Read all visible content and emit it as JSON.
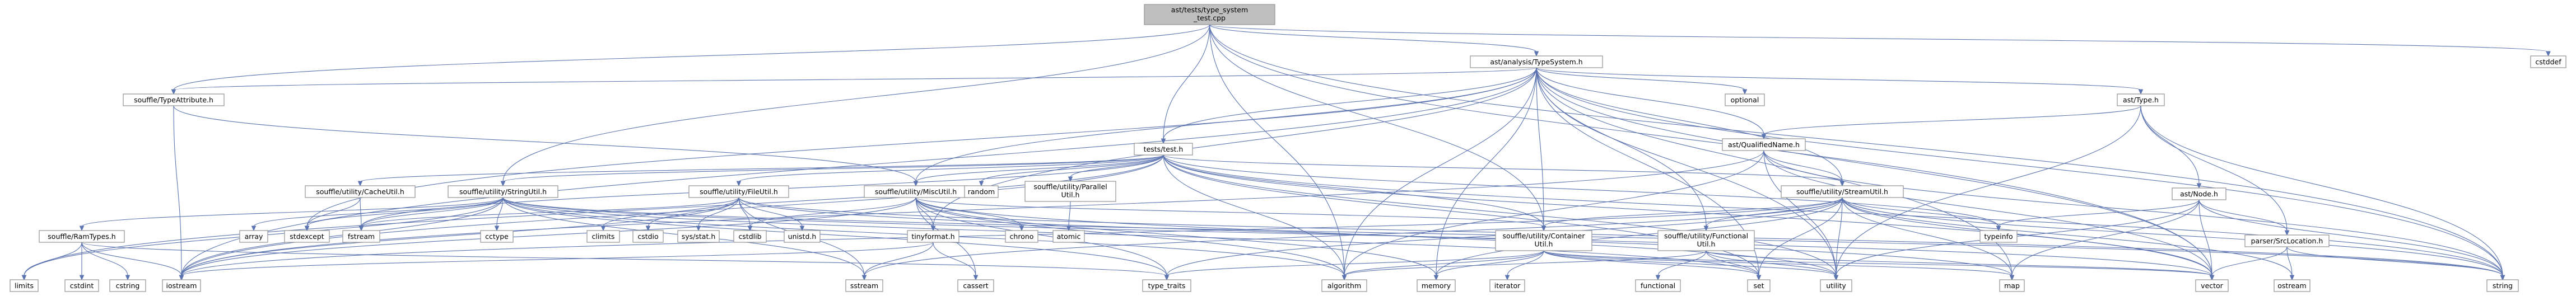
{
  "colors": {
    "node_fill": "#ffffff",
    "node_border": "#999999",
    "root_fill": "#bfbfbf",
    "root_border": "#666666",
    "red_border": "#ff0000",
    "edge": "#5c74b0"
  },
  "nodes": [
    {
      "id": "root",
      "lines": [
        "ast/tests/type_system",
        "_test.cpp"
      ],
      "style": "root"
    },
    {
      "id": "typesystem",
      "lines": [
        "ast/analysis/TypeSystem.h"
      ]
    },
    {
      "id": "cstddef",
      "lines": [
        "cstddef"
      ]
    },
    {
      "id": "typeattr",
      "lines": [
        "souffle/TypeAttribute.h"
      ]
    },
    {
      "id": "tests",
      "lines": [
        "tests/test.h"
      ]
    },
    {
      "id": "optional",
      "lines": [
        "optional"
      ]
    },
    {
      "id": "asttype",
      "lines": [
        "ast/Type.h"
      ]
    },
    {
      "id": "qualname",
      "lines": [
        "ast/QualifiedName.h"
      ]
    },
    {
      "id": "astnode",
      "lines": [
        "ast/Node.h"
      ],
      "style": "red"
    },
    {
      "id": "srcloc",
      "lines": [
        "parser/SrcLocation.h"
      ]
    },
    {
      "id": "cacheutil",
      "lines": [
        "souffle/utility/CacheUtil.h"
      ]
    },
    {
      "id": "stringutil",
      "lines": [
        "souffle/utility/StringUtil.h"
      ]
    },
    {
      "id": "fileutil",
      "lines": [
        "souffle/utility/FileUtil.h"
      ]
    },
    {
      "id": "miscutil",
      "lines": [
        "souffle/utility/MiscUtil.h"
      ]
    },
    {
      "id": "parallelutil",
      "lines": [
        "souffle/utility/Parallel",
        "Util.h"
      ]
    },
    {
      "id": "random",
      "lines": [
        "random"
      ]
    },
    {
      "id": "streamutil",
      "lines": [
        "souffle/utility/StreamUtil.h"
      ]
    },
    {
      "id": "ramtypes",
      "lines": [
        "souffle/RamTypes.h"
      ]
    },
    {
      "id": "array",
      "lines": [
        "array"
      ]
    },
    {
      "id": "stdexcept",
      "lines": [
        "stdexcept"
      ]
    },
    {
      "id": "fstream",
      "lines": [
        "fstream"
      ]
    },
    {
      "id": "cctype",
      "lines": [
        "cctype"
      ]
    },
    {
      "id": "climits",
      "lines": [
        "climits"
      ]
    },
    {
      "id": "cstdio",
      "lines": [
        "cstdio"
      ]
    },
    {
      "id": "sysstat",
      "lines": [
        "sys/stat.h"
      ]
    },
    {
      "id": "cstdlib",
      "lines": [
        "cstdlib"
      ]
    },
    {
      "id": "unistd",
      "lines": [
        "unistd.h"
      ]
    },
    {
      "id": "tinyformat",
      "lines": [
        "tinyformat.h"
      ]
    },
    {
      "id": "chrono",
      "lines": [
        "chrono"
      ]
    },
    {
      "id": "atomic",
      "lines": [
        "atomic"
      ]
    },
    {
      "id": "containerutil",
      "lines": [
        "souffle/utility/Container",
        "Util.h"
      ]
    },
    {
      "id": "functionalutil",
      "lines": [
        "souffle/utility/Functional",
        "Util.h"
      ]
    },
    {
      "id": "typeinfo",
      "lines": [
        "typeinfo"
      ]
    },
    {
      "id": "limits",
      "lines": [
        "limits"
      ]
    },
    {
      "id": "cstdint",
      "lines": [
        "cstdint"
      ]
    },
    {
      "id": "cstring",
      "lines": [
        "cstring"
      ]
    },
    {
      "id": "iostream",
      "lines": [
        "iostream"
      ]
    },
    {
      "id": "sstream",
      "lines": [
        "sstream"
      ]
    },
    {
      "id": "cassert",
      "lines": [
        "cassert"
      ]
    },
    {
      "id": "type_traits",
      "lines": [
        "type_traits"
      ]
    },
    {
      "id": "algorithm",
      "lines": [
        "algorithm"
      ]
    },
    {
      "id": "memory",
      "lines": [
        "memory"
      ]
    },
    {
      "id": "iterator",
      "lines": [
        "iterator"
      ]
    },
    {
      "id": "functional",
      "lines": [
        "functional"
      ]
    },
    {
      "id": "set",
      "lines": [
        "set"
      ]
    },
    {
      "id": "utility",
      "lines": [
        "utility"
      ]
    },
    {
      "id": "map",
      "lines": [
        "map"
      ]
    },
    {
      "id": "vector",
      "lines": [
        "vector"
      ]
    },
    {
      "id": "ostream",
      "lines": [
        "ostream"
      ]
    },
    {
      "id": "string",
      "lines": [
        "string"
      ]
    }
  ],
  "edges": [
    [
      "root",
      "typesystem"
    ],
    [
      "root",
      "cstddef"
    ],
    [
      "root",
      "typeattr"
    ],
    [
      "root",
      "tests"
    ],
    [
      "root",
      "stringutil"
    ],
    [
      "root",
      "containerutil"
    ],
    [
      "root",
      "algorithm"
    ],
    [
      "root",
      "string"
    ],
    [
      "root",
      "vector"
    ],
    [
      "typesystem",
      "typeattr"
    ],
    [
      "typesystem",
      "tests"
    ],
    [
      "typesystem",
      "optional"
    ],
    [
      "typesystem",
      "asttype"
    ],
    [
      "typesystem",
      "qualname"
    ],
    [
      "typesystem",
      "miscutil"
    ],
    [
      "typesystem",
      "streamutil"
    ],
    [
      "typesystem",
      "containerutil"
    ],
    [
      "typesystem",
      "functionalutil"
    ],
    [
      "typesystem",
      "stdexcept"
    ],
    [
      "typesystem",
      "iostream"
    ],
    [
      "typesystem",
      "algorithm"
    ],
    [
      "typesystem",
      "memory"
    ],
    [
      "typesystem",
      "set"
    ],
    [
      "typesystem",
      "utility"
    ],
    [
      "typesystem",
      "map"
    ],
    [
      "typesystem",
      "vector"
    ],
    [
      "typesystem",
      "string"
    ],
    [
      "typesystem",
      "tinyformat"
    ],
    [
      "typeattr",
      "miscutil"
    ],
    [
      "typeattr",
      "iostream"
    ],
    [
      "tests",
      "cacheutil"
    ],
    [
      "tests",
      "stringutil"
    ],
    [
      "tests",
      "fileutil"
    ],
    [
      "tests",
      "miscutil"
    ],
    [
      "tests",
      "parallelutil"
    ],
    [
      "tests",
      "random"
    ],
    [
      "tests",
      "streamutil"
    ],
    [
      "tests",
      "containerutil"
    ],
    [
      "tests",
      "fstream"
    ],
    [
      "tests",
      "iostream"
    ],
    [
      "tests",
      "limits"
    ],
    [
      "tests",
      "string"
    ],
    [
      "tests",
      "vector"
    ],
    [
      "tests",
      "set"
    ],
    [
      "tests",
      "algorithm"
    ],
    [
      "tests",
      "utility"
    ],
    [
      "tests",
      "typeinfo"
    ],
    [
      "asttype",
      "qualname"
    ],
    [
      "asttype",
      "astnode"
    ],
    [
      "asttype",
      "srcloc"
    ],
    [
      "asttype",
      "string"
    ],
    [
      "asttype",
      "utility"
    ],
    [
      "qualname",
      "streamutil"
    ],
    [
      "qualname",
      "algorithm"
    ],
    [
      "qualname",
      "string"
    ],
    [
      "qualname",
      "utility"
    ],
    [
      "qualname",
      "vector"
    ],
    [
      "qualname",
      "iostream"
    ],
    [
      "astnode",
      "srcloc"
    ],
    [
      "astnode",
      "typeinfo"
    ],
    [
      "astnode",
      "map"
    ],
    [
      "astnode",
      "utility"
    ],
    [
      "astnode",
      "vector"
    ],
    [
      "astnode",
      "string"
    ],
    [
      "srcloc",
      "string"
    ],
    [
      "srcloc",
      "ostream"
    ],
    [
      "srcloc",
      "vector"
    ],
    [
      "cacheutil",
      "fstream"
    ],
    [
      "cacheutil",
      "stdexcept"
    ],
    [
      "stringutil",
      "ramtypes"
    ],
    [
      "stringutil",
      "array"
    ],
    [
      "stringutil",
      "stdexcept"
    ],
    [
      "stringutil",
      "fstream"
    ],
    [
      "stringutil",
      "cctype"
    ],
    [
      "stringutil",
      "limits"
    ],
    [
      "stringutil",
      "sstream"
    ],
    [
      "stringutil",
      "string"
    ],
    [
      "stringutil",
      "vector"
    ],
    [
      "stringutil",
      "set"
    ],
    [
      "stringutil",
      "algorithm"
    ],
    [
      "stringutil",
      "type_traits"
    ],
    [
      "stringutil",
      "iostream"
    ],
    [
      "fileutil",
      "climits"
    ],
    [
      "fileutil",
      "cstdio"
    ],
    [
      "fileutil",
      "sysstat"
    ],
    [
      "fileutil",
      "cstdlib"
    ],
    [
      "fileutil",
      "unistd"
    ],
    [
      "fileutil",
      "fstream"
    ],
    [
      "fileutil",
      "iostream"
    ],
    [
      "fileutil",
      "map"
    ],
    [
      "fileutil",
      "sstream"
    ],
    [
      "fileutil",
      "string"
    ],
    [
      "miscutil",
      "tinyformat"
    ],
    [
      "miscutil",
      "chrono"
    ],
    [
      "miscutil",
      "cstdlib"
    ],
    [
      "miscutil",
      "iostream"
    ],
    [
      "miscutil",
      "memory"
    ],
    [
      "miscutil",
      "type_traits"
    ],
    [
      "miscutil",
      "utility"
    ],
    [
      "miscutil",
      "cassert"
    ],
    [
      "miscutil",
      "algorithm"
    ],
    [
      "miscutil",
      "containerutil"
    ],
    [
      "parallelutil",
      "atomic"
    ],
    [
      "streamutil",
      "containerutil"
    ],
    [
      "streamutil",
      "functionalutil"
    ],
    [
      "streamutil",
      "typeinfo"
    ],
    [
      "streamutil",
      "set"
    ],
    [
      "streamutil",
      "map"
    ],
    [
      "streamutil",
      "vector"
    ],
    [
      "streamutil",
      "string"
    ],
    [
      "streamutil",
      "utility"
    ],
    [
      "streamutil",
      "memory"
    ],
    [
      "streamutil",
      "sstream"
    ],
    [
      "streamutil",
      "ostream"
    ],
    [
      "streamutil",
      "type_traits"
    ],
    [
      "streamutil",
      "iostream"
    ],
    [
      "ramtypes",
      "cstdint"
    ],
    [
      "ramtypes",
      "cstring"
    ],
    [
      "ramtypes",
      "iostream"
    ],
    [
      "ramtypes",
      "limits"
    ],
    [
      "ramtypes",
      "type_traits"
    ],
    [
      "tinyformat",
      "cassert"
    ],
    [
      "tinyformat",
      "iostream"
    ],
    [
      "tinyformat",
      "sstream"
    ],
    [
      "containerutil",
      "iterator"
    ],
    [
      "containerutil",
      "map"
    ],
    [
      "containerutil",
      "memory"
    ],
    [
      "containerutil",
      "set"
    ],
    [
      "containerutil",
      "type_traits"
    ],
    [
      "containerutil",
      "utility"
    ],
    [
      "containerutil",
      "vector"
    ],
    [
      "containerutil",
      "algorithm"
    ],
    [
      "functionalutil",
      "functional"
    ],
    [
      "functionalutil",
      "utility"
    ],
    [
      "functionalutil",
      "vector"
    ],
    [
      "functionalutil",
      "set"
    ],
    [
      "functionalutil",
      "algorithm"
    ]
  ]
}
